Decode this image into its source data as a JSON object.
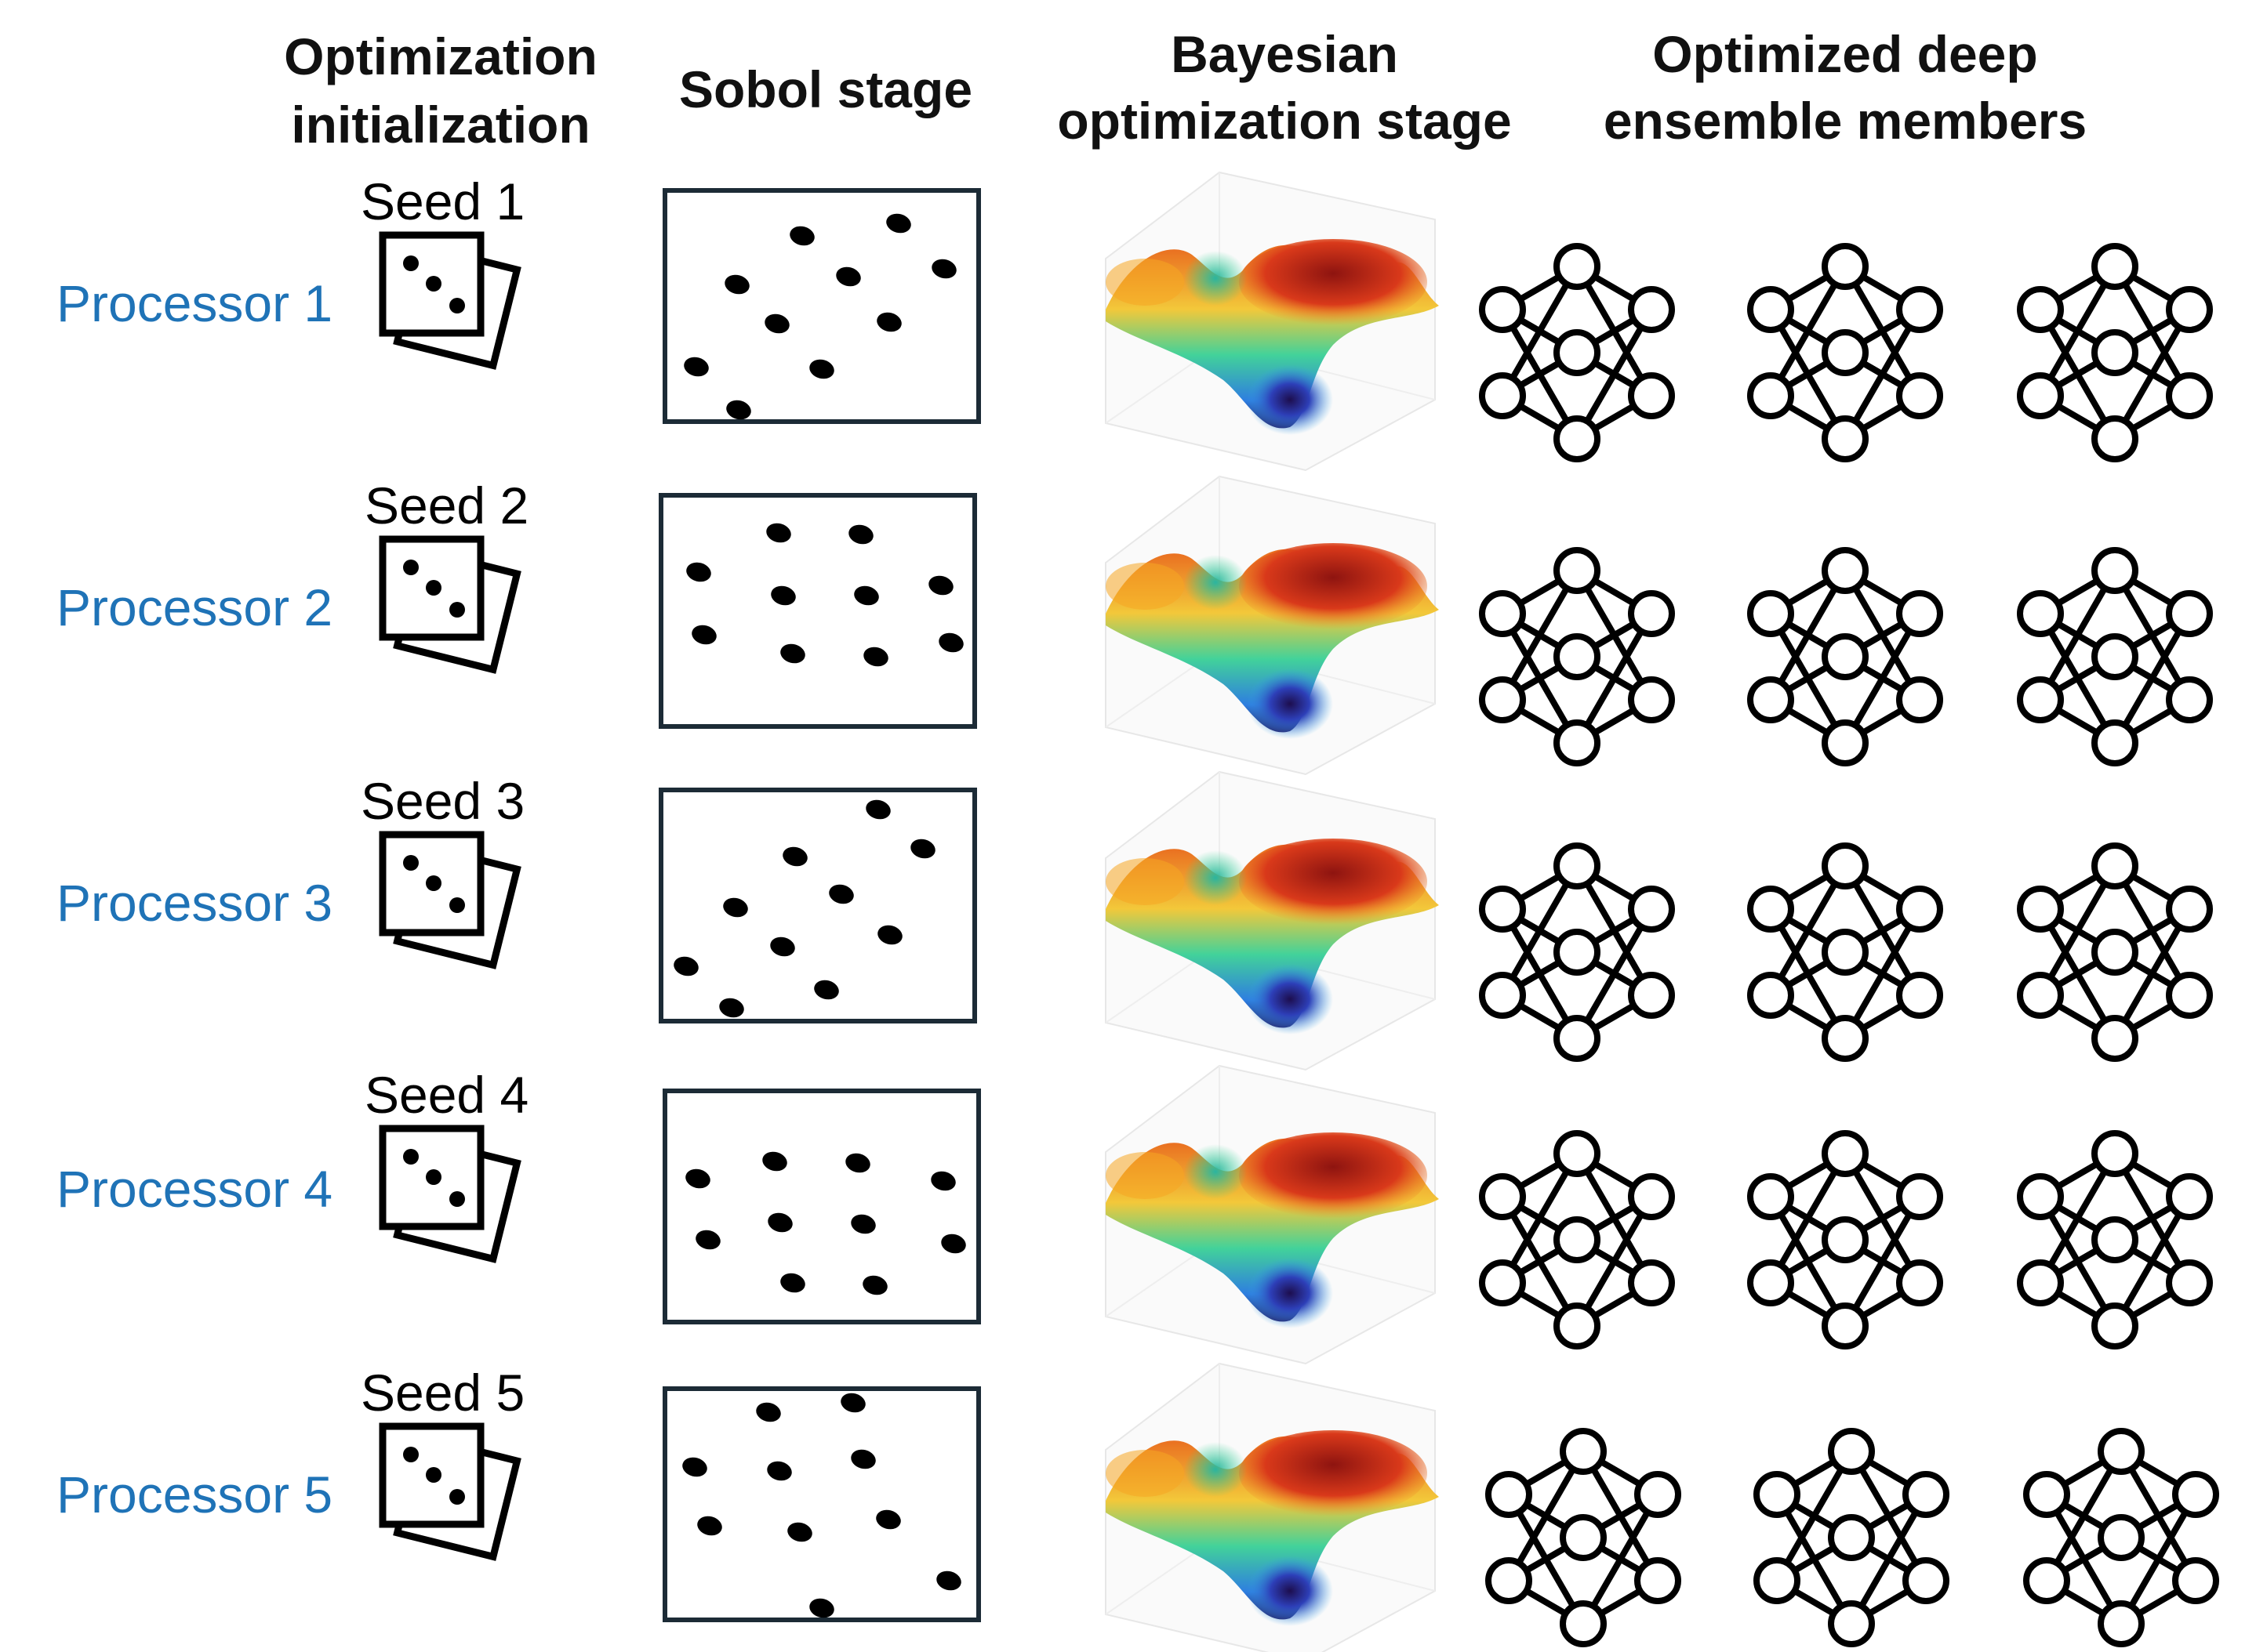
{
  "headers": {
    "col1_line1": "Optimization",
    "col1_line2": "initialization",
    "col2": "Sobol stage",
    "col3_line1": "Bayesian",
    "col3_line2": "optimization stage",
    "col4_line1": "Optimized deep",
    "col4_line2": "ensemble members"
  },
  "rows": [
    {
      "processor": "Processor 1",
      "seed": "Seed 1"
    },
    {
      "processor": "Processor 2",
      "seed": "Seed 2"
    },
    {
      "processor": "Processor 3",
      "seed": "Seed 3"
    },
    {
      "processor": "Processor 4",
      "seed": "Seed 4"
    },
    {
      "processor": "Processor 5",
      "seed": "Seed 5"
    }
  ],
  "colors": {
    "processor_text": "#1f73b7",
    "heading_text": "#111111",
    "box_border": "#1c2b36",
    "icon_stroke": "#000000"
  },
  "icons": {
    "dice": "dice-icon",
    "surface": "response-surface-icon",
    "network": "neural-network-icon"
  }
}
